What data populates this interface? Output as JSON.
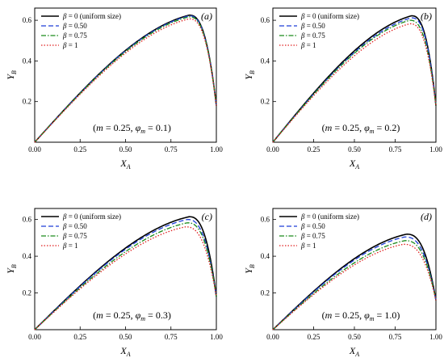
{
  "chart_data": [
    {
      "type": "line",
      "panel_label": "(a)",
      "annotation": "(m = 0.25, φm = 0.1)",
      "annotation_parts": [
        "(",
        "m",
        " = 0.25, ",
        "φ",
        "m",
        " = 0.1)"
      ],
      "xlabel": "XA",
      "xlabel_main": "X",
      "xlabel_sub": "A",
      "ylabel": "YB",
      "ylabel_main": "Y",
      "ylabel_sub": "B",
      "xlim": [
        0,
        1
      ],
      "ylim": [
        0,
        0.66
      ],
      "xticks": [
        "0.00",
        "0.25",
        "0.50",
        "0.75",
        "1.00"
      ],
      "yticks": [
        "0.2",
        "0.4",
        "0.6"
      ],
      "legend_position": "top-left",
      "series": [
        {
          "name": "β = 0 (uniform size)",
          "legend_symbol": "β",
          "legend_rest": " = 0 (uniform size)",
          "color": "#000000",
          "dash": "solid",
          "peak_x": 0.85,
          "peak_y": 0.625,
          "end_y": 0.18
        },
        {
          "name": "β = 0.50",
          "legend_symbol": "β",
          "legend_rest": " = 0.50",
          "color": "#1f3fd8",
          "dash": "dashed",
          "peak_x": 0.85,
          "peak_y": 0.622,
          "end_y": 0.18
        },
        {
          "name": "β = 0.75",
          "legend_symbol": "β",
          "legend_rest": " = 0.75",
          "color": "#1a8a1a",
          "dash": "dashdot",
          "peak_x": 0.85,
          "peak_y": 0.617,
          "end_y": 0.18
        },
        {
          "name": "β = 1",
          "legend_symbol": "β",
          "legend_rest": " = 1",
          "color": "#e02020",
          "dash": "dotted",
          "peak_x": 0.85,
          "peak_y": 0.607,
          "end_y": 0.18
        }
      ]
    },
    {
      "type": "line",
      "panel_label": "(b)",
      "annotation": "(m = 0.25, φm = 0.2)",
      "annotation_parts": [
        "(",
        "m",
        " = 0.25, ",
        "φ",
        "m",
        " = 0.2)"
      ],
      "xlabel": "XA",
      "xlabel_main": "X",
      "xlabel_sub": "A",
      "ylabel": "YB",
      "ylabel_main": "Y",
      "ylabel_sub": "B",
      "xlim": [
        0,
        1
      ],
      "ylim": [
        0,
        0.66
      ],
      "xticks": [
        "0.00",
        "0.25",
        "0.50",
        "0.75",
        "1.00"
      ],
      "yticks": [
        "0.2",
        "0.4",
        "0.6"
      ],
      "legend_position": "top-left",
      "series": [
        {
          "name": "β = 0 (uniform size)",
          "legend_symbol": "β",
          "legend_rest": " = 0 (uniform size)",
          "color": "#000000",
          "dash": "solid",
          "peak_x": 0.85,
          "peak_y": 0.622,
          "end_y": 0.18
        },
        {
          "name": "β = 0.50",
          "legend_symbol": "β",
          "legend_rest": " = 0.50",
          "color": "#1f3fd8",
          "dash": "dashed",
          "peak_x": 0.85,
          "peak_y": 0.612,
          "end_y": 0.18
        },
        {
          "name": "β = 0.75",
          "legend_symbol": "β",
          "legend_rest": " = 0.75",
          "color": "#1a8a1a",
          "dash": "dashdot",
          "peak_x": 0.84,
          "peak_y": 0.6,
          "end_y": 0.18
        },
        {
          "name": "β = 1",
          "legend_symbol": "β",
          "legend_rest": " = 1",
          "color": "#e02020",
          "dash": "dotted",
          "peak_x": 0.84,
          "peak_y": 0.583,
          "end_y": 0.18
        }
      ]
    },
    {
      "type": "line",
      "panel_label": "(c)",
      "annotation": "(m = 0.25, φm = 0.3)",
      "annotation_parts": [
        "(",
        "m",
        " = 0.25, ",
        "φ",
        "m",
        " = 0.3)"
      ],
      "xlabel": "XA",
      "xlabel_main": "X",
      "xlabel_sub": "A",
      "ylabel": "YB",
      "ylabel_main": "Y",
      "ylabel_sub": "B",
      "xlim": [
        0,
        1
      ],
      "ylim": [
        0,
        0.66
      ],
      "xticks": [
        "0.00",
        "0.25",
        "0.50",
        "0.75",
        "1.00"
      ],
      "yticks": [
        "0.2",
        "0.4",
        "0.6"
      ],
      "legend_position": "top-left",
      "series": [
        {
          "name": "β = 0 (uniform size)",
          "legend_symbol": "β",
          "legend_rest": " = 0 (uniform size)",
          "color": "#000000",
          "dash": "solid",
          "peak_x": 0.85,
          "peak_y": 0.615,
          "end_y": 0.18
        },
        {
          "name": "β = 0.50",
          "legend_symbol": "β",
          "legend_rest": " = 0.50",
          "color": "#1f3fd8",
          "dash": "dashed",
          "peak_x": 0.84,
          "peak_y": 0.6,
          "end_y": 0.18
        },
        {
          "name": "β = 0.75",
          "legend_symbol": "β",
          "legend_rest": " = 0.75",
          "color": "#1a8a1a",
          "dash": "dashdot",
          "peak_x": 0.84,
          "peak_y": 0.582,
          "end_y": 0.18
        },
        {
          "name": "β = 1",
          "legend_symbol": "β",
          "legend_rest": " = 1",
          "color": "#e02020",
          "dash": "dotted",
          "peak_x": 0.83,
          "peak_y": 0.56,
          "end_y": 0.18
        }
      ]
    },
    {
      "type": "line",
      "panel_label": "(d)",
      "annotation": "(m = 0.25, φm = 1.0)",
      "annotation_parts": [
        "(",
        "m",
        " = 0.25, ",
        "φ",
        "m",
        " = 1.0)"
      ],
      "xlabel": "XA",
      "xlabel_main": "X",
      "xlabel_sub": "A",
      "ylabel": "YB",
      "ylabel_main": "Y",
      "ylabel_sub": "B",
      "xlim": [
        0,
        1
      ],
      "ylim": [
        0,
        0.66
      ],
      "xticks": [
        "0.00",
        "0.25",
        "0.50",
        "0.75",
        "1.00"
      ],
      "yticks": [
        "0.2",
        "0.4",
        "0.6"
      ],
      "legend_position": "top-left",
      "series": [
        {
          "name": "β = 0 (uniform size)",
          "legend_symbol": "β",
          "legend_rest": " = 0 (uniform size)",
          "color": "#000000",
          "dash": "solid",
          "peak_x": 0.82,
          "peak_y": 0.52,
          "end_y": 0.16
        },
        {
          "name": "β = 0.50",
          "legend_symbol": "β",
          "legend_rest": " = 0.50",
          "color": "#1f3fd8",
          "dash": "dashed",
          "peak_x": 0.81,
          "peak_y": 0.505,
          "end_y": 0.16
        },
        {
          "name": "β = 0.75",
          "legend_symbol": "β",
          "legend_rest": " = 0.75",
          "color": "#1a8a1a",
          "dash": "dashdot",
          "peak_x": 0.81,
          "peak_y": 0.485,
          "end_y": 0.16
        },
        {
          "name": "β = 1",
          "legend_symbol": "β",
          "legend_rest": " = 1",
          "color": "#e02020",
          "dash": "dotted",
          "peak_x": 0.8,
          "peak_y": 0.465,
          "end_y": 0.16
        }
      ]
    }
  ]
}
